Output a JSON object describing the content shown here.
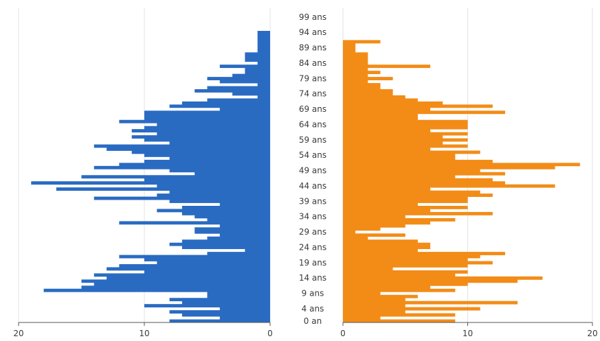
{
  "chart_data": {
    "type": "bar",
    "orientation": "horizontal",
    "layout": "population-pyramid",
    "age_labels": [
      "0 an",
      "4 ans",
      "9 ans",
      "14 ans",
      "19 ans",
      "24 ans",
      "29 ans",
      "34 ans",
      "39 ans",
      "44 ans",
      "49 ans",
      "54 ans",
      "59 ans",
      "64 ans",
      "69 ans",
      "74 ans",
      "79 ans",
      "84 ans",
      "89 ans",
      "94 ans",
      "99 ans"
    ],
    "left_axis": {
      "ticks": [
        "20",
        "10",
        "0"
      ],
      "tick_values": [
        20,
        10,
        0
      ],
      "xlim": [
        0,
        20
      ]
    },
    "right_axis": {
      "ticks": [
        "0",
        "10",
        "20"
      ],
      "tick_values": [
        0,
        10,
        20
      ],
      "xlim": [
        0,
        20
      ]
    },
    "grid": true,
    "series": [
      {
        "side": "left",
        "color": "#2a6bc2",
        "ages": [
          0,
          1,
          2,
          3,
          4,
          5,
          6,
          7,
          8,
          9,
          10,
          11,
          12,
          13,
          14,
          15,
          16,
          17,
          18,
          19,
          20,
          21,
          22,
          23,
          24,
          25,
          26,
          27,
          28,
          29,
          30,
          31,
          32,
          33,
          34,
          35,
          36,
          37,
          38,
          39,
          40,
          41,
          42,
          43,
          44,
          45,
          46,
          47,
          48,
          49,
          50,
          51,
          52,
          53,
          54,
          55,
          56,
          57,
          58,
          59,
          60,
          61,
          62,
          63,
          64,
          65,
          66,
          67,
          68,
          69,
          70,
          71,
          72,
          73,
          74,
          75,
          76,
          77,
          78,
          79,
          80,
          81,
          82,
          83,
          84,
          85,
          86,
          87,
          88,
          89,
          90,
          91,
          92,
          93,
          94
        ],
        "values": [
          8,
          4,
          7,
          8,
          4,
          10,
          7,
          8,
          5,
          5,
          18,
          15,
          14,
          15,
          13,
          14,
          10,
          13,
          12,
          9,
          10,
          12,
          5,
          2,
          7,
          8,
          7,
          5,
          4,
          6,
          6,
          4,
          12,
          5,
          6,
          7,
          9,
          7,
          4,
          8,
          14,
          9,
          8,
          17,
          9,
          19,
          10,
          15,
          6,
          8,
          14,
          12,
          10,
          8,
          10,
          11,
          13,
          14,
          8,
          10,
          11,
          9,
          11,
          10,
          9,
          12,
          10,
          10,
          10,
          4,
          8,
          7,
          5,
          1,
          3,
          6,
          5,
          1,
          4,
          5,
          3,
          2,
          2,
          4,
          1,
          2,
          2,
          2,
          1,
          1,
          1,
          1,
          1,
          1,
          1
        ]
      },
      {
        "side": "right",
        "color": "#f28c17",
        "ages": [
          0,
          1,
          2,
          3,
          4,
          5,
          6,
          7,
          8,
          9,
          10,
          11,
          12,
          13,
          14,
          15,
          16,
          17,
          18,
          19,
          20,
          21,
          22,
          23,
          24,
          25,
          26,
          27,
          28,
          29,
          30,
          31,
          32,
          33,
          34,
          35,
          36,
          37,
          38,
          39,
          40,
          41,
          42,
          43,
          44,
          45,
          46,
          47,
          48,
          49,
          50,
          51,
          52,
          53,
          54,
          55,
          56,
          57,
          58,
          59,
          60,
          61,
          62,
          63,
          64,
          65,
          66,
          67,
          68,
          69,
          70,
          71,
          72,
          73,
          74,
          75,
          76,
          77,
          78,
          79,
          80,
          81,
          82,
          83,
          84,
          85,
          86,
          87,
          88,
          89,
          90,
          91,
          92,
          93,
          94
        ],
        "values": [
          9,
          3,
          9,
          5,
          11,
          5,
          14,
          5,
          6,
          3,
          9,
          7,
          10,
          14,
          16,
          9,
          10,
          4,
          10,
          12,
          10,
          11,
          13,
          6,
          7,
          7,
          6,
          2,
          5,
          1,
          3,
          5,
          7,
          9,
          5,
          12,
          7,
          10,
          6,
          10,
          10,
          12,
          11,
          7,
          17,
          13,
          12,
          9,
          13,
          11,
          17,
          19,
          12,
          9,
          9,
          11,
          7,
          10,
          8,
          10,
          8,
          10,
          7,
          10,
          10,
          10,
          6,
          6,
          13,
          7,
          12,
          8,
          6,
          5,
          4,
          4,
          3,
          3,
          2,
          4,
          2,
          3,
          2,
          7,
          2,
          2,
          2,
          2,
          1,
          1,
          1,
          3,
          0,
          0,
          0
        ]
      }
    ]
  }
}
